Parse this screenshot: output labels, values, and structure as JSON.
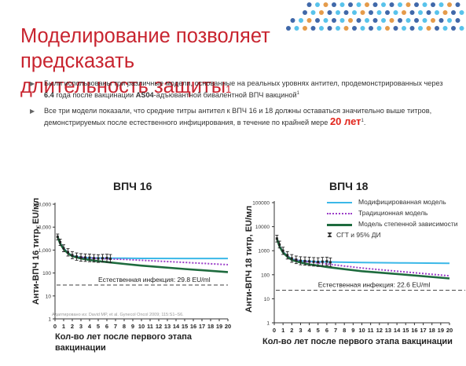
{
  "title_line1": "Моделирование позволяет предсказать",
  "title_line2": "длительность защиты",
  "title_sup": "1",
  "bullet1_a": "Были использованы три различные модели, основанные на реальных уровнях антител, продемонстрированных через ",
  "bullet1_b": "6.4",
  "bullet1_c": " года после вакцинации  ",
  "bullet1_d": "AS04",
  "bullet1_e": "-адъювантной бивалентной ВПЧ вакциной",
  "bullet1_sup": "1",
  "bullet2_a": "Все три модели показали, что средние титры антител к ВПЧ 16 и 18 должны оставаться значительно выше титров, демонстрируемых после естественного инфицирования, в течение по крайней мере ",
  "bullet2_b": "20 лет",
  "bullet2_sup": "1",
  "bullet2_c": ".",
  "legend": {
    "modified": "Модифицированная модель",
    "traditional": "Традиционная модель",
    "power": "Модель степенной зависимости",
    "ci": "СГТ и  95% ДИ",
    "ci_icon": "error-bar-icon"
  },
  "reference": "Адаптировано из: David MP, et al. Gynecol Oncol 2009; 115:S1–S6.",
  "colors": {
    "modified": "#3bb8e8",
    "traditional": "#9b3dc8",
    "power": "#1e6b3e",
    "natural": "#555555",
    "title": "#c8242f"
  },
  "chart_data": [
    {
      "type": "line",
      "title": "ВПЧ 16",
      "ylabel": "Анти-ВПЧ 16 титр, EU/мл",
      "xlabel": "Кол-во лет после первого этапа вакцинации",
      "xlim": [
        0,
        20
      ],
      "ylim": [
        1,
        100000
      ],
      "yscale": "log",
      "x_ticks": [
        0,
        1,
        2,
        3,
        4,
        5,
        6,
        7,
        8,
        9,
        10,
        11,
        12,
        13,
        14,
        15,
        16,
        17,
        18,
        19,
        20
      ],
      "y_ticks": [
        1,
        10,
        100,
        1000,
        10000,
        100000
      ],
      "y_tick_labels": [
        "1",
        "10",
        "100",
        "1,000",
        "10,000",
        "100,000"
      ],
      "series": [
        {
          "name": "Модифицированная модель",
          "x": [
            0.3,
            0.6,
            1,
            1.5,
            2,
            3,
            4,
            5,
            6,
            8,
            10,
            15,
            20
          ],
          "y": [
            3800,
            2000,
            1200,
            750,
            560,
            480,
            460,
            450,
            445,
            440,
            435,
            430,
            430
          ]
        },
        {
          "name": "Традиционная модель",
          "x": [
            0.3,
            0.6,
            1,
            1.5,
            2,
            3,
            4,
            5,
            6,
            8,
            10,
            15,
            20
          ],
          "y": [
            3800,
            2000,
            1200,
            750,
            560,
            480,
            450,
            430,
            415,
            390,
            360,
            290,
            230
          ]
        },
        {
          "name": "Модель степенной зависимости",
          "x": [
            0.3,
            0.6,
            1,
            1.5,
            2,
            3,
            4,
            5,
            6,
            8,
            10,
            15,
            20
          ],
          "y": [
            3800,
            1900,
            1100,
            720,
            540,
            430,
            370,
            330,
            300,
            250,
            210,
            150,
            110
          ]
        }
      ],
      "gmt_ci": {
        "x": [
          0.3,
          0.6,
          1,
          1.5,
          2,
          2.5,
          3,
          3.5,
          4,
          4.5,
          5,
          5.5,
          6,
          6.4
        ],
        "y": [
          3800,
          2200,
          1200,
          800,
          600,
          520,
          480,
          470,
          460,
          440,
          430,
          440,
          450,
          420
        ],
        "lower": [
          2800,
          1600,
          850,
          550,
          420,
          360,
          330,
          320,
          310,
          300,
          290,
          300,
          300,
          280
        ],
        "upper": [
          5000,
          3000,
          1700,
          1150,
          860,
          750,
          700,
          680,
          670,
          640,
          630,
          650,
          660,
          640
        ]
      },
      "natural_infection": {
        "label": "Естественная инфекция: 29.8 EU/ml",
        "value": 29.8
      }
    },
    {
      "type": "line",
      "title": "ВПЧ 18",
      "ylabel": "Анти-ВПЧ 18 титр, EU/мл",
      "xlabel": "Кол-во лет после первого этапа вакцинации",
      "xlim": [
        0,
        20
      ],
      "ylim": [
        1,
        100000
      ],
      "yscale": "log",
      "x_ticks": [
        0,
        1,
        2,
        3,
        4,
        5,
        6,
        7,
        8,
        9,
        10,
        11,
        12,
        13,
        14,
        15,
        16,
        17,
        18,
        19,
        20
      ],
      "y_ticks": [
        1,
        10,
        100,
        1000,
        10000,
        100000
      ],
      "y_tick_labels": [
        "1",
        "10",
        "100",
        "1000",
        "10000",
        "100000"
      ],
      "series": [
        {
          "name": "Модифицированная модель",
          "x": [
            0.3,
            0.6,
            1,
            1.5,
            2,
            3,
            4,
            5,
            6,
            8,
            10,
            15,
            20
          ],
          "y": [
            3200,
            1600,
            900,
            600,
            450,
            380,
            360,
            350,
            340,
            330,
            320,
            310,
            300
          ]
        },
        {
          "name": "Традиционная модель",
          "x": [
            0.3,
            0.6,
            1,
            1.5,
            2,
            3,
            4,
            5,
            6,
            8,
            10,
            15,
            20
          ],
          "y": [
            3200,
            1600,
            900,
            600,
            450,
            370,
            340,
            310,
            280,
            230,
            190,
            130,
            90
          ]
        },
        {
          "name": "Модель степенной зависимости",
          "x": [
            0.3,
            0.6,
            1,
            1.5,
            2,
            3,
            4,
            5,
            6,
            8,
            10,
            15,
            20
          ],
          "y": [
            3200,
            1500,
            850,
            560,
            410,
            320,
            270,
            240,
            210,
            170,
            140,
            100,
            70
          ]
        }
      ],
      "gmt_ci": {
        "x": [
          0.3,
          0.6,
          1,
          1.5,
          2,
          2.5,
          3,
          3.5,
          4,
          4.5,
          5,
          5.5,
          6,
          6.4
        ],
        "y": [
          3200,
          1800,
          1000,
          650,
          480,
          420,
          380,
          370,
          360,
          350,
          340,
          350,
          360,
          330
        ],
        "lower": [
          2300,
          1300,
          700,
          450,
          330,
          290,
          260,
          250,
          240,
          230,
          220,
          230,
          240,
          220
        ],
        "upper": [
          4400,
          2500,
          1400,
          920,
          690,
          600,
          560,
          550,
          540,
          520,
          510,
          530,
          540,
          500
        ]
      },
      "natural_infection": {
        "label": "Естественная инфекция: 22.6 EU/ml",
        "value": 22.6
      }
    }
  ]
}
